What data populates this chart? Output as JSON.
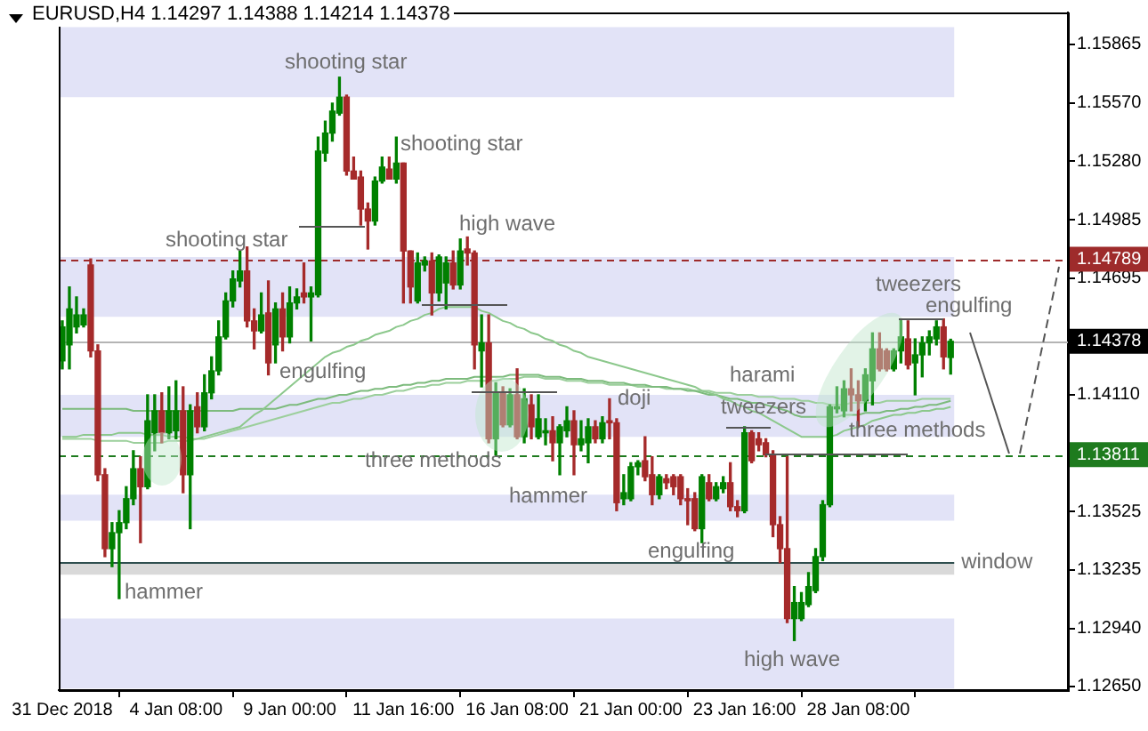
{
  "chart_data": {
    "type": "candlestick",
    "title": "EURUSD,H4 1.14297 1.14388 1.14214 1.14378",
    "categories": [
      "31 Dec 2018",
      null,
      null,
      null,
      null,
      null,
      null,
      null,
      null,
      null,
      null,
      null,
      null,
      null,
      null,
      null,
      "4 Jan 08:00",
      null,
      null,
      null,
      null,
      null,
      null,
      null,
      null,
      null,
      null,
      null,
      null,
      null,
      null,
      null,
      "9 Jan 00:00",
      null,
      null,
      null,
      null,
      null,
      null,
      null,
      null,
      null,
      null,
      null,
      null,
      null,
      null,
      null,
      "11 Jan 16:00",
      null,
      null,
      null,
      null,
      null,
      null,
      null,
      null,
      null,
      null,
      null,
      null,
      null,
      null,
      null,
      "16 Jan 08:00",
      null,
      null,
      null,
      null,
      null,
      null,
      null,
      null,
      null,
      null,
      null,
      null,
      null,
      null,
      null,
      "21 Jan 00:00",
      null,
      null,
      null,
      null,
      null,
      null,
      null,
      null,
      null,
      null,
      null,
      null,
      null,
      null,
      null,
      "23 Jan 16:00",
      null,
      null,
      null,
      null,
      null,
      null,
      null,
      null,
      null,
      null,
      null,
      null,
      null,
      null,
      null,
      "28 Jan 08:00",
      null,
      null,
      null,
      null,
      null,
      null,
      null,
      null,
      null,
      null,
      null,
      null,
      null
    ],
    "ohlc": [
      [
        1.1428,
        1.1448,
        1.1424,
        1.1445
      ],
      [
        1.1436,
        1.1465,
        1.1424,
        1.1454
      ],
      [
        1.1445,
        1.146,
        1.1442,
        1.1451
      ],
      [
        1.1446,
        1.1454,
        1.1445,
        1.1451
      ],
      [
        1.1476,
        1.1479,
        1.143,
        1.1433
      ],
      [
        1.1433,
        1.1436,
        1.1368,
        1.1371
      ],
      [
        1.1371,
        1.1374,
        1.133,
        1.1334
      ],
      [
        1.1334,
        1.1347,
        1.1325,
        1.1342
      ],
      [
        1.1342,
        1.1353,
        1.1309,
        1.1347
      ],
      [
        1.1347,
        1.1365,
        1.1344,
        1.1359
      ],
      [
        1.1359,
        1.1383,
        1.1356,
        1.1374
      ],
      [
        1.1374,
        1.138,
        1.1337,
        1.1365
      ],
      [
        1.1365,
        1.1411,
        1.1364,
        1.1398
      ],
      [
        1.1392,
        1.1411,
        1.1383,
        1.1403
      ],
      [
        1.1403,
        1.1412,
        1.1387,
        1.1392
      ],
      [
        1.1392,
        1.1415,
        1.1389,
        1.1403
      ],
      [
        1.1393,
        1.1418,
        1.1389,
        1.1403
      ],
      [
        1.1403,
        1.1415,
        1.1362,
        1.1371
      ],
      [
        1.1371,
        1.1406,
        1.1344,
        1.1403
      ],
      [
        1.1405,
        1.1412,
        1.1392,
        1.1395
      ],
      [
        1.1395,
        1.1421,
        1.1393,
        1.1412
      ],
      [
        1.1412,
        1.143,
        1.1409,
        1.1423
      ],
      [
        1.1423,
        1.1448,
        1.1421,
        1.144
      ],
      [
        1.144,
        1.1462,
        1.1439,
        1.1458
      ],
      [
        1.1458,
        1.1473,
        1.1455,
        1.1469
      ],
      [
        1.1468,
        1.1483,
        1.1465,
        1.1473
      ],
      [
        1.1473,
        1.1485,
        1.1445,
        1.1448
      ],
      [
        1.1448,
        1.1454,
        1.1434,
        1.1443
      ],
      [
        1.1443,
        1.1462,
        1.1442,
        1.1451
      ],
      [
        1.1452,
        1.1468,
        1.1421,
        1.1427
      ],
      [
        1.1436,
        1.1457,
        1.1427,
        1.1454
      ],
      [
        1.1454,
        1.1462,
        1.1433,
        1.144
      ],
      [
        1.144,
        1.1465,
        1.1437,
        1.1457
      ],
      [
        1.1457,
        1.1464,
        1.1454,
        1.146
      ],
      [
        1.1462,
        1.1477,
        1.1457,
        1.146
      ],
      [
        1.146,
        1.1465,
        1.1438,
        1.1462
      ],
      [
        1.1461,
        1.154,
        1.146,
        1.1533
      ],
      [
        1.1532,
        1.1548,
        1.1528,
        1.1542
      ],
      [
        1.1542,
        1.1557,
        1.1538,
        1.1553
      ],
      [
        1.1552,
        1.157,
        1.1551,
        1.156
      ],
      [
        1.156,
        1.1561,
        1.1521,
        1.1523
      ],
      [
        1.1523,
        1.153,
        1.1519,
        1.1519
      ],
      [
        1.152,
        1.1523,
        1.1496,
        1.1504
      ],
      [
        1.1504,
        1.1507,
        1.1484,
        1.1498
      ],
      [
        1.1498,
        1.152,
        1.1496,
        1.1518
      ],
      [
        1.1518,
        1.153,
        1.1517,
        1.1525
      ],
      [
        1.1524,
        1.153,
        1.1519,
        1.1519
      ],
      [
        1.1519,
        1.154,
        1.1517,
        1.1527
      ],
      [
        1.1527,
        1.1527,
        1.1457,
        1.1483
      ],
      [
        1.1483,
        1.1483,
        1.1457,
        1.1465
      ],
      [
        1.1458,
        1.1482,
        1.1457,
        1.1477
      ],
      [
        1.1476,
        1.148,
        1.1473,
        1.1478
      ],
      [
        1.1478,
        1.1482,
        1.1451,
        1.1462
      ],
      [
        1.1462,
        1.1481,
        1.1458,
        1.148
      ],
      [
        1.1467,
        1.148,
        1.1454,
        1.1477
      ],
      [
        1.1477,
        1.1483,
        1.1464,
        1.1466
      ],
      [
        1.1466,
        1.1489,
        1.1464,
        1.1483
      ],
      [
        1.1484,
        1.149,
        1.1476,
        1.1482
      ],
      [
        1.1482,
        1.1483,
        1.1424,
        1.1436
      ],
      [
        1.1433,
        1.1451,
        1.1415,
        1.1437
      ],
      [
        1.1437,
        1.1451,
        1.1387,
        1.1389
      ],
      [
        1.1389,
        1.1417,
        1.1381,
        1.1412
      ],
      [
        1.1412,
        1.1415,
        1.1395,
        1.1396
      ],
      [
        1.1396,
        1.1414,
        1.1395,
        1.1411
      ],
      [
        1.1411,
        1.1424,
        1.1389,
        1.139
      ],
      [
        1.139,
        1.1414,
        1.1387,
        1.1409
      ],
      [
        1.1406,
        1.1411,
        1.1389,
        1.1395
      ],
      [
        1.139,
        1.1411,
        1.1389,
        1.1399
      ],
      [
        1.1392,
        1.1399,
        1.1386,
        1.1393
      ],
      [
        1.1393,
        1.14,
        1.1378,
        1.1387
      ],
      [
        1.1387,
        1.1396,
        1.1371,
        1.1395
      ],
      [
        1.1393,
        1.1405,
        1.139,
        1.1398
      ],
      [
        1.1398,
        1.1403,
        1.1371,
        1.1386
      ],
      [
        1.1386,
        1.1398,
        1.1383,
        1.1389
      ],
      [
        1.1387,
        1.1399,
        1.1377,
        1.1395
      ],
      [
        1.1395,
        1.1398,
        1.1387,
        1.1389
      ],
      [
        1.1389,
        1.14,
        1.1387,
        1.1397
      ],
      [
        1.1398,
        1.1409,
        1.1389,
        1.1397
      ],
      [
        1.1397,
        1.1399,
        1.1353,
        1.1357
      ],
      [
        1.1359,
        1.1371,
        1.1356,
        1.1362
      ],
      [
        1.1359,
        1.1377,
        1.1358,
        1.1375
      ],
      [
        1.1375,
        1.1378,
        1.1371,
        1.1377
      ],
      [
        1.1378,
        1.139,
        1.1368,
        1.137
      ],
      [
        1.1371,
        1.138,
        1.1356,
        1.1361
      ],
      [
        1.1361,
        1.1371,
        1.1359,
        1.137
      ],
      [
        1.1369,
        1.1371,
        1.1364,
        1.1367
      ],
      [
        1.137,
        1.1371,
        1.1361,
        1.1365
      ],
      [
        1.137,
        1.1371,
        1.1356,
        1.1359
      ],
      [
        1.1359,
        1.1364,
        1.1346,
        1.1358
      ],
      [
        1.1359,
        1.1362,
        1.1343,
        1.1344
      ],
      [
        1.1344,
        1.1371,
        1.1337,
        1.137
      ],
      [
        1.1367,
        1.1371,
        1.1358,
        1.1359
      ],
      [
        1.1359,
        1.1367,
        1.1358,
        1.1365
      ],
      [
        1.1364,
        1.137,
        1.1362,
        1.1367
      ],
      [
        1.1367,
        1.1377,
        1.1353,
        1.1355
      ],
      [
        1.1355,
        1.1358,
        1.135,
        1.1353
      ],
      [
        1.1353,
        1.1395,
        1.1352,
        1.1392
      ],
      [
        1.1392,
        1.1393,
        1.1377,
        1.1378
      ],
      [
        1.1389,
        1.1392,
        1.1383,
        1.1386
      ],
      [
        1.1387,
        1.1389,
        1.138,
        1.1381
      ],
      [
        1.1381,
        1.1383,
        1.134,
        1.1346
      ],
      [
        1.1346,
        1.135,
        1.1327,
        1.1334
      ],
      [
        1.1334,
        1.138,
        1.1297,
        1.1299
      ],
      [
        1.1299,
        1.1315,
        1.1288,
        1.1307
      ],
      [
        1.1299,
        1.1312,
        1.1298,
        1.1307
      ],
      [
        1.1306,
        1.1322,
        1.1305,
        1.1315
      ],
      [
        1.1313,
        1.1334,
        1.1312,
        1.133
      ],
      [
        1.133,
        1.1358,
        1.1328,
        1.1356
      ],
      [
        1.1356,
        1.1406,
        1.1355,
        1.1405
      ],
      [
        1.1404,
        1.1415,
        1.1402,
        1.1405
      ],
      [
        1.1403,
        1.1418,
        1.14,
        1.1414
      ],
      [
        1.1414,
        1.1424,
        1.1403,
        1.1411
      ],
      [
        1.1411,
        1.1418,
        1.1395,
        1.1408
      ],
      [
        1.1408,
        1.1424,
        1.1403,
        1.1421
      ],
      [
        1.1418,
        1.1442,
        1.1406,
        1.1434
      ],
      [
        1.1434,
        1.1442,
        1.1423,
        1.1424
      ],
      [
        1.1433,
        1.1434,
        1.1423,
        1.1424
      ],
      [
        1.1424,
        1.1434,
        1.1423,
        1.1433
      ],
      [
        1.1433,
        1.1449,
        1.1427,
        1.144
      ],
      [
        1.1439,
        1.1448,
        1.1424,
        1.1426
      ],
      [
        1.1427,
        1.1439,
        1.1411,
        1.1431
      ],
      [
        1.1431,
        1.144,
        1.142,
        1.1437
      ],
      [
        1.1437,
        1.1443,
        1.1431,
        1.144
      ],
      [
        1.1439,
        1.1448,
        1.1436,
        1.1445
      ],
      [
        1.1445,
        1.1449,
        1.1424,
        1.143
      ],
      [
        1.14297,
        1.14388,
        1.14214,
        1.14378
      ]
    ],
    "series": [
      {
        "type": "line",
        "color": "#8cc88c",
        "values": [
          1.139,
          1.139,
          1.139,
          1.1391,
          1.1391,
          1.1391,
          1.1391,
          1.1391,
          1.1392,
          1.1392,
          1.1392,
          1.1392,
          1.1391,
          1.1391,
          1.1391,
          1.139,
          1.139,
          1.139,
          1.1389,
          1.1389,
          1.139,
          1.1391,
          1.1392,
          1.1393,
          1.1394,
          1.1395,
          1.1398,
          1.1401,
          1.1403,
          1.1406,
          1.1409,
          1.1412,
          1.1415,
          1.1418,
          1.1421,
          1.1424,
          1.1427,
          1.143,
          1.1432,
          1.1433,
          1.1435,
          1.1436,
          1.1438,
          1.1439,
          1.1441,
          1.1442,
          1.1443,
          1.1445,
          1.1446,
          1.1448,
          1.1449,
          1.1451,
          1.1452,
          1.1454,
          1.1455,
          1.1455,
          1.1455,
          1.1455,
          1.1455,
          1.1453,
          1.1452,
          1.145,
          1.1448,
          1.1447,
          1.1445,
          1.1444,
          1.1442,
          1.1441,
          1.1439,
          1.1438,
          1.1436,
          1.1435,
          1.1433,
          1.1432,
          1.143,
          1.1429,
          1.1428,
          1.1427,
          1.1426,
          1.1425,
          1.1424,
          1.1423,
          1.1422,
          1.1421,
          1.142,
          1.1419,
          1.1418,
          1.1417,
          1.1416,
          1.1415,
          1.1413,
          1.1412,
          1.1411,
          1.1409,
          1.1408,
          1.1406,
          1.1405,
          1.1403,
          1.1402,
          1.14,
          1.1398,
          1.1396,
          1.1394,
          1.1392,
          1.139,
          1.139,
          1.139,
          1.139,
          1.139,
          1.1391,
          1.1393,
          1.1394,
          1.1395,
          1.1396,
          1.1398,
          1.1399,
          1.14,
          1.1401,
          1.1401,
          1.1402,
          1.1402,
          1.1403,
          1.1403,
          1.1404,
          1.1404,
          1.1405
        ]
      },
      {
        "type": "line",
        "color": "#7dbb7d",
        "values": [
          1.1404,
          1.1404,
          1.1404,
          1.1404,
          1.1404,
          1.1404,
          1.1404,
          1.1404,
          1.1404,
          1.1404,
          1.1403,
          1.1403,
          1.1403,
          1.1403,
          1.1403,
          1.1403,
          1.1403,
          1.1403,
          1.1403,
          1.1403,
          1.1403,
          1.1403,
          1.1403,
          1.1403,
          1.1403,
          1.1404,
          1.1404,
          1.1404,
          1.1404,
          1.1404,
          1.1404,
          1.1405,
          1.1406,
          1.1406,
          1.1407,
          1.1408,
          1.1409,
          1.1409,
          1.141,
          1.1411,
          1.1411,
          1.1412,
          1.1413,
          1.1413,
          1.1414,
          1.1414,
          1.1415,
          1.1415,
          1.1416,
          1.1416,
          1.1417,
          1.1417,
          1.1418,
          1.1418,
          1.1419,
          1.1419,
          1.1419,
          1.1419,
          1.142,
          1.142,
          1.142,
          1.142,
          1.142,
          1.1421,
          1.1421,
          1.1421,
          1.1421,
          1.1421,
          1.142,
          1.142,
          1.142,
          1.1419,
          1.1419,
          1.1419,
          1.1418,
          1.1418,
          1.1418,
          1.1417,
          1.1417,
          1.1417,
          1.1416,
          1.1416,
          1.1416,
          1.1415,
          1.1415,
          1.1415,
          1.1414,
          1.1414,
          1.1413,
          1.1413,
          1.1412,
          1.1411,
          1.1411,
          1.141,
          1.1409,
          1.1409,
          1.1408,
          1.1407,
          1.1407,
          1.1406,
          1.1405,
          1.1404,
          1.1403,
          1.1401,
          1.14,
          1.14,
          1.14,
          1.14,
          1.14,
          1.14,
          1.1401,
          1.1401,
          1.1401,
          1.1402,
          1.1402,
          1.1402,
          1.1403,
          1.1403,
          1.1404,
          1.1404,
          1.1405,
          1.1405,
          1.1406,
          1.1406,
          1.1407,
          1.1408
        ]
      },
      {
        "type": "line",
        "color": "#9ccf9c",
        "values": [
          1.1389,
          1.1389,
          1.1389,
          1.1389,
          1.1389,
          1.1388,
          1.1388,
          1.1388,
          1.1388,
          1.1388,
          1.1387,
          1.1387,
          1.1387,
          1.1387,
          1.1387,
          1.1388,
          1.1388,
          1.1388,
          1.1388,
          1.1389,
          1.1389,
          1.139,
          1.1391,
          1.1392,
          1.1393,
          1.1394,
          1.1395,
          1.1396,
          1.1397,
          1.1398,
          1.1399,
          1.14,
          1.1401,
          1.1402,
          1.1403,
          1.1404,
          1.1405,
          1.1406,
          1.1407,
          1.1407,
          1.1408,
          1.1409,
          1.1409,
          1.141,
          1.1411,
          1.1411,
          1.1412,
          1.1413,
          1.1413,
          1.1414,
          1.1415,
          1.1415,
          1.1416,
          1.1416,
          1.1417,
          1.1417,
          1.1417,
          1.1418,
          1.1418,
          1.1418,
          1.1418,
          1.1418,
          1.1419,
          1.1419,
          1.1419,
          1.142,
          1.142,
          1.142,
          1.1419,
          1.1419,
          1.1419,
          1.1418,
          1.1418,
          1.1418,
          1.1417,
          1.1417,
          1.1417,
          1.1416,
          1.1416,
          1.1416,
          1.1416,
          1.1415,
          1.1415,
          1.1415,
          1.1415,
          1.1414,
          1.1414,
          1.1414,
          1.1414,
          1.1413,
          1.1413,
          1.1413,
          1.1412,
          1.1412,
          1.1412,
          1.1411,
          1.1411,
          1.1411,
          1.141,
          1.141,
          1.141,
          1.1409,
          1.1409,
          1.1409,
          1.1408,
          1.1408,
          1.1407,
          1.1407,
          1.1406,
          1.1406,
          1.1406,
          1.1407,
          1.1407,
          1.1407,
          1.1407,
          1.1407,
          1.1408,
          1.1408,
          1.1408,
          1.1408,
          1.1408,
          1.1409,
          1.1409,
          1.1409,
          1.1409,
          1.1409
        ]
      }
    ],
    "ylim": [
      1.12632,
      1.16024
    ],
    "yticks": [
      1.15865,
      {
        "value": 1.1557,
        "label": "1.15570"
      },
      {
        "value": 1.1528,
        "label": "1.15280"
      },
      1.14985,
      1.14695,
      {
        "value": 1.1411,
        "label": "1.14110"
      },
      1.13525,
      1.13235,
      {
        "value": 1.1294,
        "label": "1.12940"
      },
      {
        "value": 1.1265,
        "label": "1.12650"
      }
    ],
    "bands": [
      {
        "axis": "y",
        "from": 1.156,
        "to": 1.1595,
        "color": "#e2e3f7"
      },
      {
        "axis": "y",
        "from": 1.145,
        "to": 1.148,
        "color": "#e2e3f7"
      },
      {
        "axis": "y",
        "from": 1.139,
        "to": 1.1411,
        "color": "#e2e3f7"
      },
      {
        "axis": "y",
        "from": 1.1348,
        "to": 1.1361,
        "color": "#e2e3f7"
      },
      {
        "axis": "y",
        "from": 1.1264,
        "to": 1.1299,
        "color": "#e2e3f7"
      },
      {
        "axis": "y",
        "from": 1.1321,
        "to": 1.1327,
        "color": "#d9d9d9",
        "label": "window"
      }
    ],
    "ref_lines": [
      {
        "axis": "y",
        "value": 1.14789,
        "label": "1.14789",
        "color": "#9e2b2b",
        "line_style": "dashed"
      },
      {
        "axis": "y",
        "value": 1.14378,
        "label": "1.14378",
        "color": "#b4b4b4",
        "line_style": "solid"
      },
      {
        "axis": "y",
        "value": 1.1327,
        "color": "#2f4f4f",
        "line_style": "solid"
      },
      {
        "axis": "y",
        "value": 1.13811,
        "label": "1.13811",
        "color": "#1e7b1e",
        "line_style": "dashed"
      }
    ],
    "annotations": [
      "shooting star",
      "shooting star",
      "shooting star",
      "high wave",
      "engulfing",
      "three methods",
      "hammer",
      "doji",
      "harami",
      "tweezers",
      "three methods",
      "tweezers",
      "engulfing",
      "engulfing",
      "high wave",
      "hammer"
    ]
  }
}
